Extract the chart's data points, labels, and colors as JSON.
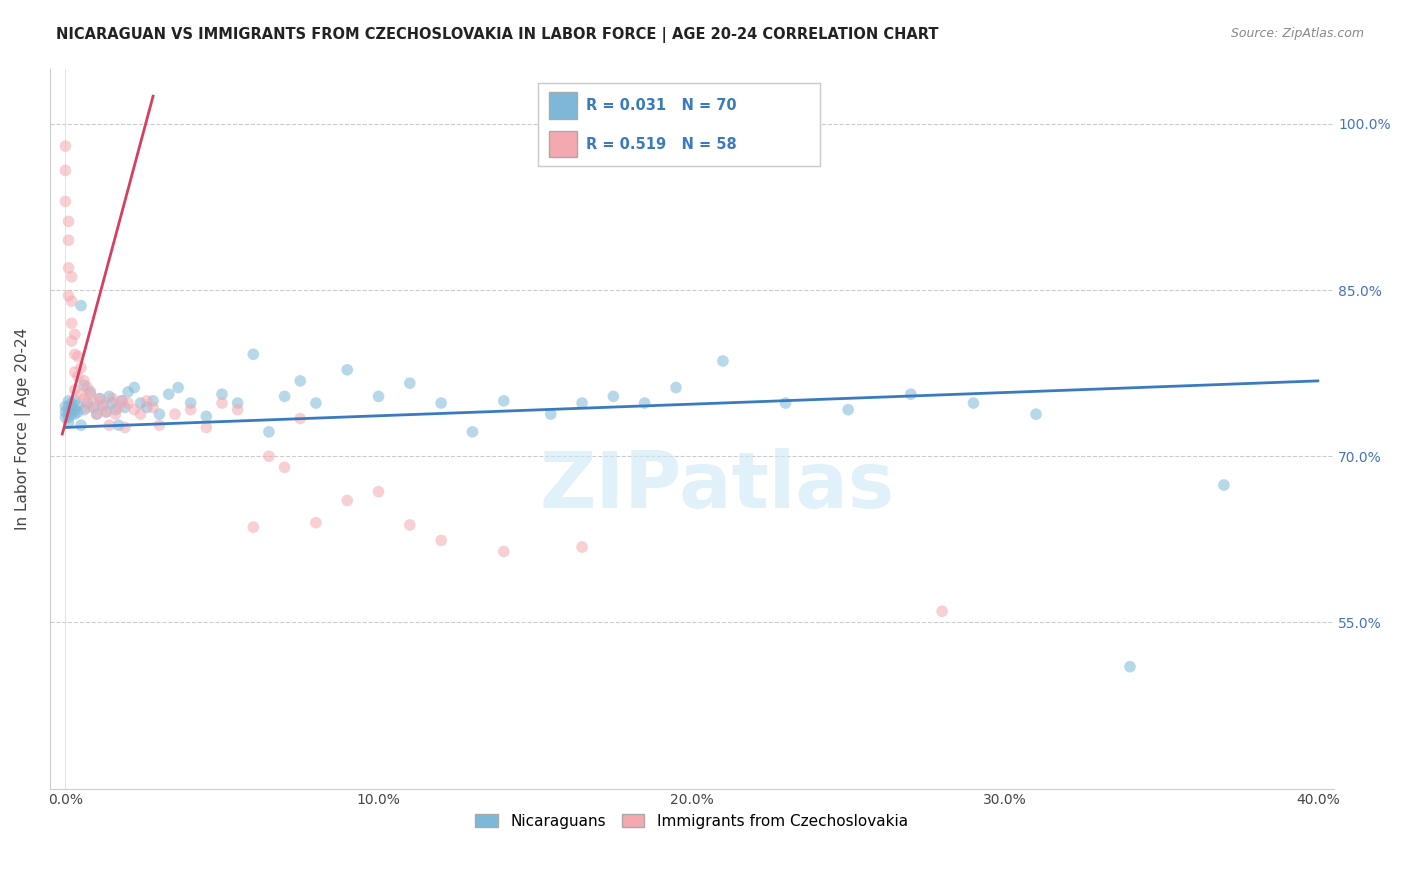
{
  "title": "NICARAGUAN VS IMMIGRANTS FROM CZECHOSLOVAKIA IN LABOR FORCE | AGE 20-24 CORRELATION CHART",
  "source": "Source: ZipAtlas.com",
  "ylabel": "In Labor Force | Age 20-24",
  "xlim": [
    -0.005,
    0.405
  ],
  "ylim": [
    0.4,
    1.05
  ],
  "yticks": [
    0.55,
    0.7,
    0.85,
    1.0
  ],
  "ytick_labels": [
    "55.0%",
    "70.0%",
    "85.0%",
    "100.0%"
  ],
  "xticks": [
    0.0,
    0.1,
    0.2,
    0.3,
    0.4
  ],
  "xtick_labels": [
    "0.0%",
    "10.0%",
    "20.0%",
    "30.0%",
    "40.0%"
  ],
  "blue_color": "#7db8d8",
  "pink_color": "#f4a8b0",
  "blue_line_color": "#3a7bbf",
  "pink_line_color": "#d44060",
  "legend_label_blue": "Nicaraguans",
  "legend_label_pink": "Immigrants from Czechoslovakia",
  "blue_scatter_x": [
    0.0,
    0.0,
    0.0,
    0.001,
    0.001,
    0.001,
    0.001,
    0.001,
    0.002,
    0.002,
    0.002,
    0.002,
    0.003,
    0.003,
    0.003,
    0.004,
    0.004,
    0.005,
    0.005,
    0.006,
    0.006,
    0.007,
    0.008,
    0.009,
    0.01,
    0.011,
    0.012,
    0.013,
    0.014,
    0.015,
    0.016,
    0.017,
    0.018,
    0.019,
    0.02,
    0.022,
    0.024,
    0.026,
    0.028,
    0.03,
    0.033,
    0.036,
    0.04,
    0.045,
    0.05,
    0.055,
    0.06,
    0.065,
    0.07,
    0.075,
    0.08,
    0.09,
    0.1,
    0.11,
    0.12,
    0.13,
    0.14,
    0.155,
    0.165,
    0.175,
    0.185,
    0.195,
    0.21,
    0.23,
    0.25,
    0.27,
    0.29,
    0.31,
    0.34,
    0.37
  ],
  "blue_scatter_y": [
    0.74,
    0.745,
    0.735,
    0.75,
    0.73,
    0.745,
    0.74,
    0.735,
    0.748,
    0.742,
    0.738,
    0.744,
    0.75,
    0.738,
    0.742,
    0.746,
    0.74,
    0.836,
    0.728,
    0.764,
    0.742,
    0.748,
    0.758,
    0.744,
    0.738,
    0.752,
    0.746,
    0.74,
    0.754,
    0.748,
    0.742,
    0.728,
    0.75,
    0.744,
    0.758,
    0.762,
    0.748,
    0.744,
    0.75,
    0.738,
    0.756,
    0.762,
    0.748,
    0.736,
    0.756,
    0.748,
    0.792,
    0.722,
    0.754,
    0.768,
    0.748,
    0.778,
    0.754,
    0.766,
    0.748,
    0.722,
    0.75,
    0.738,
    0.748,
    0.754,
    0.748,
    0.762,
    0.786,
    0.748,
    0.742,
    0.756,
    0.748,
    0.738,
    0.51,
    0.674
  ],
  "pink_scatter_x": [
    0.0,
    0.0,
    0.0,
    0.001,
    0.001,
    0.001,
    0.001,
    0.002,
    0.002,
    0.002,
    0.002,
    0.003,
    0.003,
    0.003,
    0.003,
    0.004,
    0.004,
    0.005,
    0.005,
    0.006,
    0.006,
    0.007,
    0.007,
    0.008,
    0.009,
    0.01,
    0.011,
    0.012,
    0.013,
    0.014,
    0.015,
    0.016,
    0.017,
    0.018,
    0.019,
    0.02,
    0.022,
    0.024,
    0.026,
    0.028,
    0.03,
    0.035,
    0.04,
    0.045,
    0.05,
    0.055,
    0.06,
    0.065,
    0.07,
    0.075,
    0.08,
    0.09,
    0.1,
    0.11,
    0.12,
    0.14,
    0.165,
    0.28
  ],
  "pink_scatter_y": [
    0.98,
    0.958,
    0.93,
    0.912,
    0.895,
    0.87,
    0.845,
    0.862,
    0.84,
    0.82,
    0.804,
    0.81,
    0.792,
    0.776,
    0.76,
    0.79,
    0.772,
    0.78,
    0.756,
    0.768,
    0.752,
    0.762,
    0.744,
    0.756,
    0.748,
    0.738,
    0.752,
    0.746,
    0.74,
    0.728,
    0.752,
    0.738,
    0.744,
    0.75,
    0.726,
    0.748,
    0.742,
    0.738,
    0.75,
    0.744,
    0.728,
    0.738,
    0.742,
    0.726,
    0.748,
    0.742,
    0.636,
    0.7,
    0.69,
    0.734,
    0.64,
    0.66,
    0.668,
    0.638,
    0.624,
    0.614,
    0.618,
    0.56
  ],
  "blue_trendline_x": [
    0.0,
    0.4
  ],
  "blue_trendline_y": [
    0.726,
    0.768
  ],
  "pink_trendline_x": [
    -0.001,
    0.028
  ],
  "pink_trendline_y": [
    0.72,
    1.025
  ],
  "watermark": "ZIPatlas",
  "background_color": "#ffffff",
  "grid_color": "#cccccc",
  "grid_style": "--",
  "marker_size": 70,
  "marker_alpha": 0.55
}
